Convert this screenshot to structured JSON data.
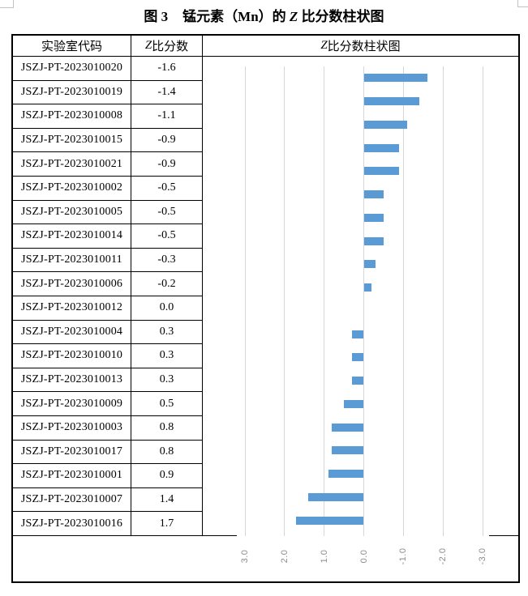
{
  "page": {
    "title_prefix": "图 3",
    "title_main": "锰元素（Mn）的 ",
    "title_z": "Z",
    "title_suffix": " 比分数柱状图"
  },
  "table": {
    "header": {
      "col1": "实验室代码",
      "col2_z": "Z",
      "col2_rest": " 比分数",
      "col3_z": "Z",
      "col3_rest": " 比分数柱状图"
    },
    "rows": [
      {
        "code": "JSZJ-PT-2023010020",
        "score": "-1.6"
      },
      {
        "code": "JSZJ-PT-2023010019",
        "score": "-1.4"
      },
      {
        "code": "JSZJ-PT-2023010008",
        "score": "-1.1"
      },
      {
        "code": "JSZJ-PT-2023010015",
        "score": "-0.9"
      },
      {
        "code": "JSZJ-PT-2023010021",
        "score": "-0.9"
      },
      {
        "code": "JSZJ-PT-2023010002",
        "score": "-0.5"
      },
      {
        "code": "JSZJ-PT-2023010005",
        "score": "-0.5"
      },
      {
        "code": "JSZJ-PT-2023010014",
        "score": "-0.5"
      },
      {
        "code": "JSZJ-PT-2023010011",
        "score": "-0.3"
      },
      {
        "code": "JSZJ-PT-2023010006",
        "score": "-0.2"
      },
      {
        "code": "JSZJ-PT-2023010012",
        "score": "0.0"
      },
      {
        "code": "JSZJ-PT-2023010004",
        "score": "0.3"
      },
      {
        "code": "JSZJ-PT-2023010010",
        "score": "0.3"
      },
      {
        "code": "JSZJ-PT-2023010013",
        "score": "0.3"
      },
      {
        "code": "JSZJ-PT-2023010009",
        "score": "0.5"
      },
      {
        "code": "JSZJ-PT-2023010003",
        "score": "0.8"
      },
      {
        "code": "JSZJ-PT-2023010017",
        "score": "0.8"
      },
      {
        "code": "JSZJ-PT-2023010001",
        "score": "0.9"
      },
      {
        "code": "JSZJ-PT-2023010007",
        "score": "1.4"
      },
      {
        "code": "JSZJ-PT-2023010016",
        "score": "1.7"
      }
    ]
  },
  "chart_data": {
    "type": "bar",
    "orientation": "horizontal",
    "title": "图 3 锰元素（Mn）的 Z 比分数柱状图",
    "categories": [
      "JSZJ-PT-2023010020",
      "JSZJ-PT-2023010019",
      "JSZJ-PT-2023010008",
      "JSZJ-PT-2023010015",
      "JSZJ-PT-2023010021",
      "JSZJ-PT-2023010002",
      "JSZJ-PT-2023010005",
      "JSZJ-PT-2023010014",
      "JSZJ-PT-2023010011",
      "JSZJ-PT-2023010006",
      "JSZJ-PT-2023010012",
      "JSZJ-PT-2023010004",
      "JSZJ-PT-2023010010",
      "JSZJ-PT-2023010013",
      "JSZJ-PT-2023010009",
      "JSZJ-PT-2023010003",
      "JSZJ-PT-2023010017",
      "JSZJ-PT-2023010001",
      "JSZJ-PT-2023010007",
      "JSZJ-PT-2023010016"
    ],
    "values": [
      -1.6,
      -1.4,
      -1.1,
      -0.9,
      -0.9,
      -0.5,
      -0.5,
      -0.5,
      -0.3,
      -0.2,
      0.0,
      0.3,
      0.3,
      0.3,
      0.5,
      0.8,
      0.8,
      0.9,
      1.4,
      1.7
    ],
    "xlabel": "Z 比分数",
    "xlim": [
      3.0,
      -3.0
    ],
    "x_axis_reversed": true,
    "xticks": [
      3,
      2,
      1,
      0,
      -1,
      -2,
      -3
    ],
    "xticklabels": [
      "3.0",
      "2.0",
      "1.0",
      "0.0",
      "-1.0",
      "-2.0",
      "-3.0"
    ],
    "grid": true,
    "legend": "none",
    "bar_color": "#5b9bd5",
    "gridline_color": "#d6d6d6",
    "axis_label_color": "#8c8c8c"
  }
}
